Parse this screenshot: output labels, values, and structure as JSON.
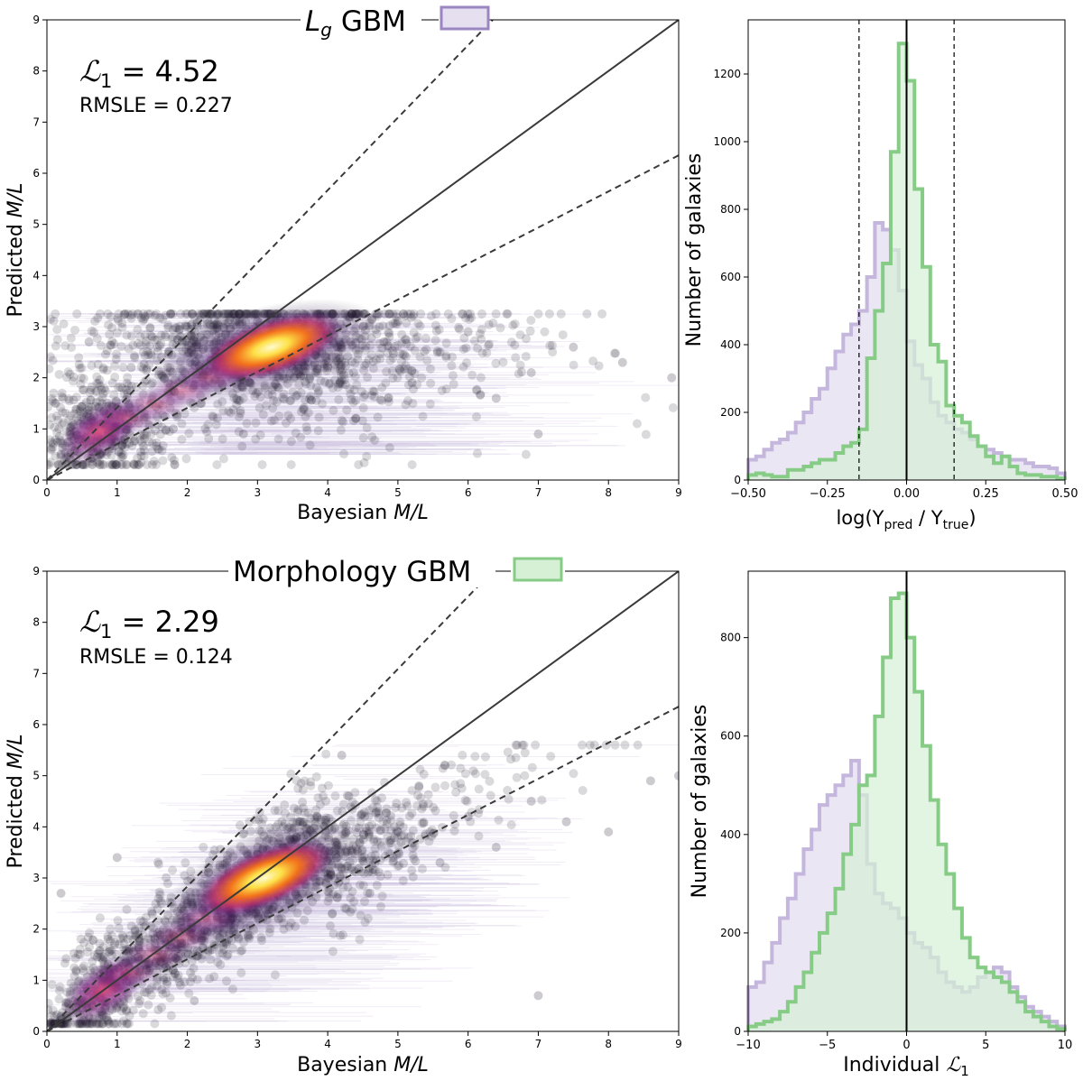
{
  "chart_data": [
    {
      "id": "scatter-top",
      "type": "scatter",
      "title_prefix": "L",
      "title_sub": "g",
      "title_suffix": " GBM",
      "legend_color": "#9b86c2",
      "legend_fill": "#e6dff0",
      "stat_l1_symbol": "ℒ",
      "stat_l1_sub": "1",
      "stat_l1_value": " = 4.52",
      "stat_rmsle": "RMSLE = 0.227",
      "xlabel_prefix": "Bayesian ",
      "xlabel_italic": "M/L",
      "ylabel_prefix": "Predicted ",
      "ylabel_italic": "M/L",
      "xlim": [
        0,
        9
      ],
      "ylim": [
        0,
        9
      ],
      "xticks": [
        "0",
        "1",
        "2",
        "3",
        "4",
        "5",
        "6",
        "7",
        "8",
        "9"
      ],
      "yticks": [
        "0",
        "1",
        "2",
        "3",
        "4",
        "5",
        "6",
        "7",
        "8",
        "9"
      ],
      "lines": [
        {
          "name": "one-to-one",
          "style": "solid",
          "x": [
            0,
            9
          ],
          "y": [
            0,
            9
          ]
        },
        {
          "name": "upper-bound",
          "style": "dashed",
          "x": [
            0,
            6.35
          ],
          "y": [
            0,
            9
          ]
        },
        {
          "name": "lower-bound",
          "style": "dashed",
          "x": [
            0,
            9
          ],
          "y": [
            0,
            6.35
          ]
        }
      ],
      "density_center": [
        3.1,
        2.55
      ],
      "density_spread": [
        0.9,
        0.35
      ],
      "hot_core": [
        3.2,
        2.6
      ],
      "secondary_core": [
        0.75,
        0.95
      ],
      "prediction_ceiling": 3.25,
      "sample_points": [
        [
          0.2,
          0.5
        ],
        [
          0.5,
          0.8
        ],
        [
          0.8,
          1.1
        ],
        [
          1.0,
          1.4
        ],
        [
          1.2,
          2.2
        ],
        [
          1.5,
          2.8
        ],
        [
          1.8,
          1.0
        ],
        [
          2.0,
          3.0
        ],
        [
          2.2,
          1.5
        ],
        [
          2.5,
          2.4
        ],
        [
          2.8,
          0.9
        ],
        [
          3.0,
          3.1
        ],
        [
          3.3,
          1.8
        ],
        [
          3.6,
          2.9
        ],
        [
          4.0,
          2.2
        ],
        [
          4.4,
          1.2
        ],
        [
          4.8,
          2.7
        ],
        [
          5.2,
          1.9
        ],
        [
          5.6,
          2.5
        ],
        [
          6.0,
          2.9
        ],
        [
          6.4,
          1.6
        ],
        [
          6.9,
          2.1
        ],
        [
          7.5,
          2.6
        ],
        [
          8.2,
          2.3
        ],
        [
          8.9,
          2.0
        ],
        [
          0.6,
          2.7
        ],
        [
          1.4,
          3.2
        ],
        [
          3.9,
          3.2
        ],
        [
          5.0,
          3.1
        ],
        [
          7.0,
          0.9
        ]
      ]
    },
    {
      "id": "hist-top",
      "type": "histogram",
      "xlabel": "log(Y",
      "xlabel_sub1": "pred",
      "xlabel_mid": " / Y",
      "xlabel_sub2": "true",
      "xlabel_end": ")",
      "ylabel": "Number of galaxies",
      "xlim": [
        -0.5,
        0.5
      ],
      "ylim": [
        0,
        1360
      ],
      "xticks": [
        "−0.50",
        "−0.25",
        "0.00",
        "0.25",
        "0.50"
      ],
      "xtick_values": [
        -0.5,
        -0.25,
        0.0,
        0.25,
        0.5
      ],
      "yticks": [
        "0",
        "200",
        "400",
        "600",
        "800",
        "1000",
        "1200"
      ],
      "ytick_values": [
        0,
        200,
        400,
        600,
        800,
        1000,
        1200
      ],
      "vlines": [
        {
          "x": 0.0,
          "style": "solid"
        },
        {
          "x": -0.15,
          "style": "dashed"
        },
        {
          "x": 0.15,
          "style": "dashed"
        }
      ],
      "bin_edges": [
        -0.5,
        -0.475,
        -0.45,
        -0.425,
        -0.4,
        -0.375,
        -0.35,
        -0.325,
        -0.3,
        -0.275,
        -0.25,
        -0.225,
        -0.2,
        -0.175,
        -0.15,
        -0.125,
        -0.1,
        -0.075,
        -0.05,
        -0.025,
        0.0,
        0.025,
        0.05,
        0.075,
        0.1,
        0.125,
        0.15,
        0.175,
        0.2,
        0.225,
        0.25,
        0.275,
        0.3,
        0.325,
        0.35,
        0.375,
        0.4,
        0.425,
        0.45,
        0.475,
        0.5
      ],
      "series": [
        {
          "name": "Lg GBM",
          "stroke": "#c4b6dc",
          "fill": "#e8e2f1",
          "values": [
            60,
            70,
            90,
            110,
            120,
            140,
            170,
            200,
            240,
            270,
            330,
            380,
            430,
            460,
            500,
            600,
            760,
            740,
            680,
            560,
            410,
            340,
            300,
            230,
            190,
            170,
            150,
            140,
            120,
            100,
            90,
            80,
            70,
            60,
            60,
            50,
            40,
            40,
            35,
            20
          ]
        },
        {
          "name": "Morphology GBM",
          "stroke": "#86cc86",
          "fill": "#d6f0d6",
          "values": [
            15,
            20,
            15,
            10,
            10,
            30,
            30,
            40,
            50,
            60,
            60,
            80,
            100,
            110,
            150,
            360,
            500,
            640,
            970,
            1290,
            1180,
            860,
            630,
            400,
            350,
            220,
            190,
            170,
            130,
            100,
            70,
            50,
            70,
            40,
            20,
            15,
            15,
            10,
            10,
            5
          ]
        }
      ]
    },
    {
      "id": "scatter-bottom",
      "type": "scatter",
      "title_prefix": "",
      "title_sub": "",
      "title_suffix": "Morphology GBM",
      "legend_color": "#86cc86",
      "legend_fill": "#d6f0d6",
      "stat_l1_symbol": "ℒ",
      "stat_l1_sub": "1",
      "stat_l1_value": " = 2.29",
      "stat_rmsle": "RMSLE = 0.124",
      "xlabel_prefix": "Bayesian ",
      "xlabel_italic": "M/L",
      "ylabel_prefix": "Predicted ",
      "ylabel_italic": "M/L",
      "xlim": [
        0,
        9
      ],
      "ylim": [
        0,
        9
      ],
      "xticks": [
        "0",
        "1",
        "2",
        "3",
        "4",
        "5",
        "6",
        "7",
        "8",
        "9"
      ],
      "yticks": [
        "0",
        "1",
        "2",
        "3",
        "4",
        "5",
        "6",
        "7",
        "8",
        "9"
      ],
      "lines": [
        {
          "name": "one-to-one",
          "style": "solid",
          "x": [
            0,
            9
          ],
          "y": [
            0,
            9
          ]
        },
        {
          "name": "upper-bound",
          "style": "dashed",
          "x": [
            0,
            6.35
          ],
          "y": [
            0,
            9
          ]
        },
        {
          "name": "lower-bound",
          "style": "dashed",
          "x": [
            0,
            9
          ],
          "y": [
            0,
            6.35
          ]
        }
      ],
      "density_center": [
        3.0,
        2.9
      ],
      "density_spread": [
        0.8,
        0.4
      ],
      "hot_core": [
        3.1,
        3.0
      ],
      "secondary_core": [
        0.8,
        0.8
      ],
      "prediction_ceiling": 5.6,
      "sample_points": [
        [
          0.2,
          0.3
        ],
        [
          0.5,
          0.6
        ],
        [
          0.9,
          1.0
        ],
        [
          1.2,
          1.4
        ],
        [
          1.5,
          2.3
        ],
        [
          1.8,
          1.2
        ],
        [
          2.0,
          2.5
        ],
        [
          2.3,
          3.2
        ],
        [
          2.6,
          1.9
        ],
        [
          3.0,
          3.6
        ],
        [
          3.3,
          2.2
        ],
        [
          3.6,
          4.1
        ],
        [
          4.0,
          3.0
        ],
        [
          4.3,
          4.6
        ],
        [
          4.6,
          2.7
        ],
        [
          5.0,
          3.9
        ],
        [
          5.3,
          4.8
        ],
        [
          5.6,
          3.3
        ],
        [
          6.0,
          4.2
        ],
        [
          6.4,
          3.6
        ],
        [
          6.9,
          4.5
        ],
        [
          7.4,
          4.1
        ],
        [
          8.0,
          3.9
        ],
        [
          8.6,
          4.9
        ],
        [
          9.0,
          5.0
        ],
        [
          0.2,
          2.7
        ],
        [
          1.0,
          3.4
        ],
        [
          2.1,
          0.6
        ],
        [
          4.2,
          5.4
        ],
        [
          7.0,
          0.7
        ]
      ]
    },
    {
      "id": "hist-bottom",
      "type": "histogram",
      "xlabel": "Individual ",
      "xlabel_sym": "ℒ",
      "xlabel_sym_sub": "1",
      "ylabel": "Number of galaxies",
      "xlim": [
        -10,
        10
      ],
      "ylim": [
        0,
        935
      ],
      "xticks": [
        "−10",
        "−5",
        "0",
        "5",
        "10"
      ],
      "xtick_values": [
        -10,
        -5,
        0,
        5,
        10
      ],
      "yticks": [
        "0",
        "200",
        "400",
        "600",
        "800"
      ],
      "ytick_values": [
        0,
        200,
        400,
        600,
        800
      ],
      "vlines": [
        {
          "x": 0.0,
          "style": "solid"
        }
      ],
      "bin_edges": [
        -10,
        -9.5,
        -9,
        -8.5,
        -8,
        -7.5,
        -7,
        -6.5,
        -6,
        -5.5,
        -5,
        -4.5,
        -4,
        -3.5,
        -3,
        -2.5,
        -2,
        -1.5,
        -1,
        -0.5,
        0,
        0.5,
        1,
        1.5,
        2,
        2.5,
        3,
        3.5,
        4,
        4.5,
        5,
        5.5,
        6,
        6.5,
        7,
        7.5,
        8,
        8.5,
        9,
        9.5,
        10
      ],
      "series": [
        {
          "name": "Lg GBM",
          "stroke": "#c4b6dc",
          "fill": "#e8e2f1",
          "values": [
            90,
            100,
            140,
            180,
            230,
            270,
            320,
            370,
            410,
            460,
            480,
            500,
            520,
            550,
            480,
            340,
            280,
            260,
            250,
            230,
            200,
            180,
            170,
            150,
            120,
            100,
            90,
            80,
            90,
            110,
            120,
            130,
            120,
            90,
            70,
            50,
            40,
            30,
            20,
            10
          ]
        },
        {
          "name": "Morphology GBM",
          "stroke": "#86cc86",
          "fill": "#d6f0d6",
          "values": [
            10,
            15,
            20,
            25,
            40,
            60,
            90,
            120,
            160,
            200,
            240,
            290,
            360,
            420,
            500,
            520,
            640,
            760,
            880,
            890,
            800,
            690,
            580,
            470,
            380,
            320,
            250,
            190,
            150,
            130,
            120,
            110,
            100,
            80,
            60,
            40,
            30,
            20,
            10,
            5
          ]
        }
      ]
    }
  ]
}
